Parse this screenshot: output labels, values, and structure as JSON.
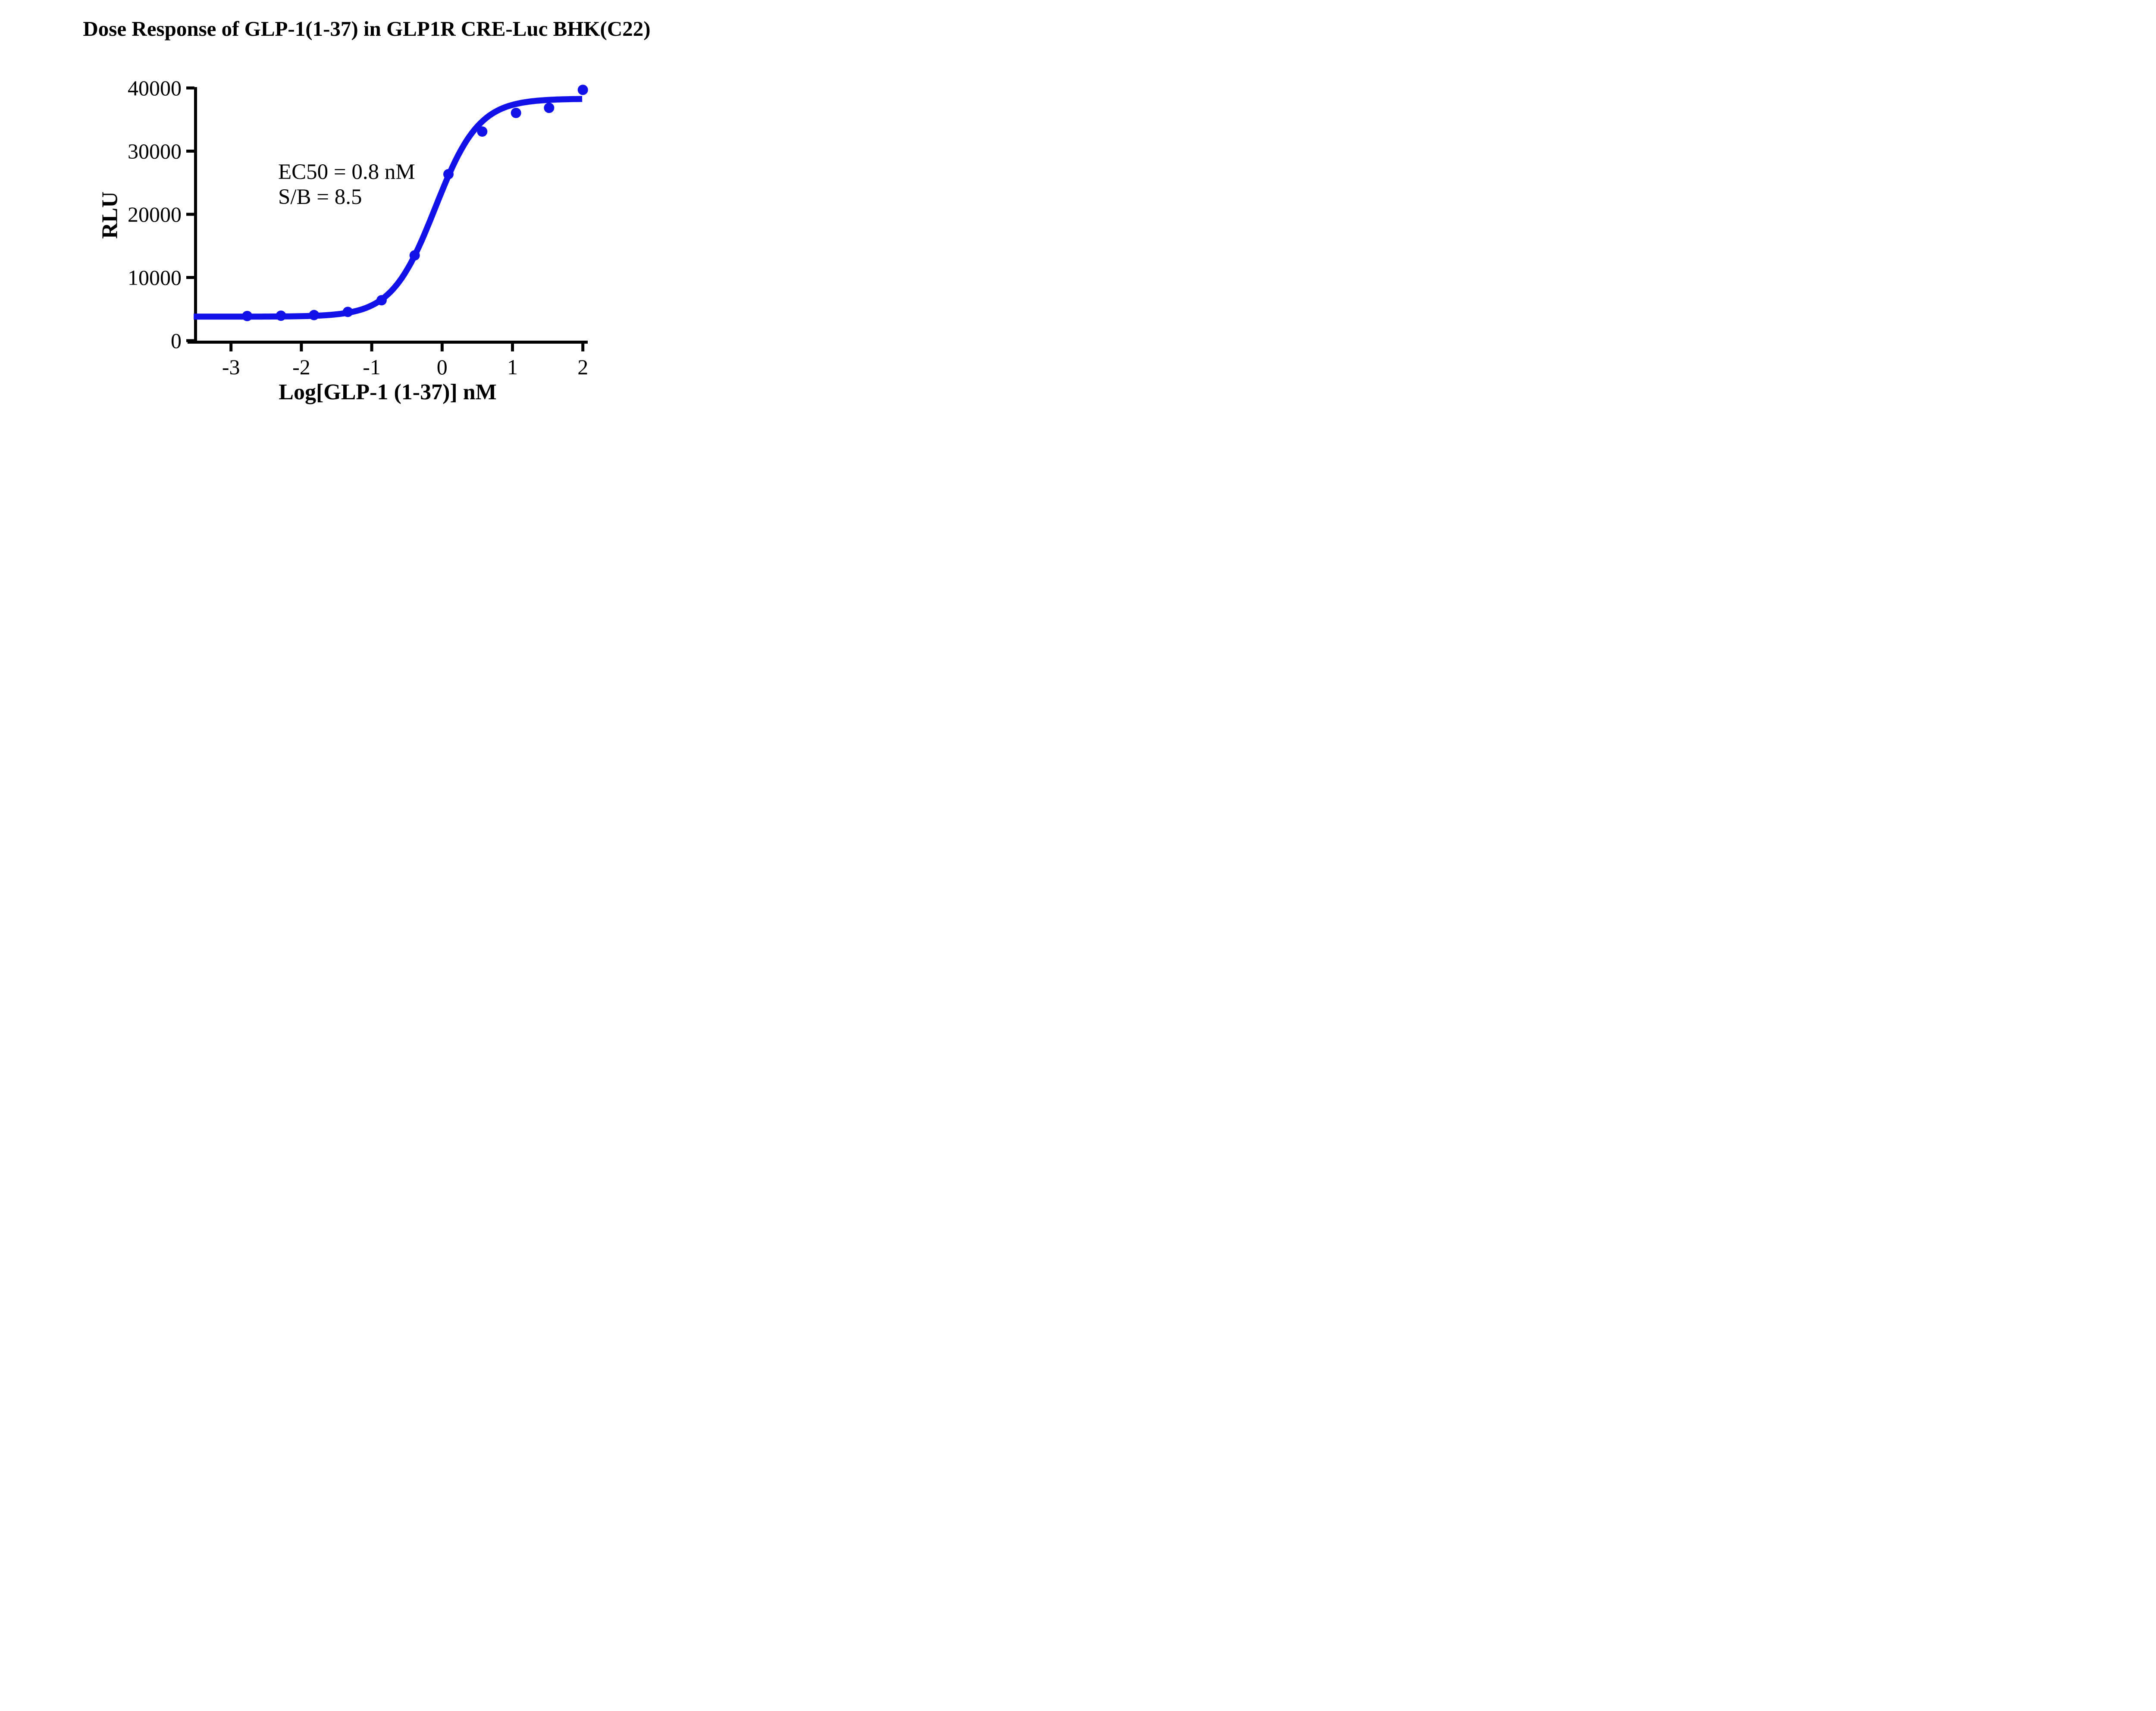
{
  "title": "Dose Response of GLP-1(1-37) in GLP1R CRE-Luc BHK(C22)",
  "colors": {
    "series": "#1212E8",
    "axis": "#000000",
    "background": "#FFFFFF",
    "text": "#000000"
  },
  "chart_data": {
    "type": "scatter",
    "title": "Dose Response of GLP-1(1-37) in GLP1R CRE-Luc BHK(C22)",
    "xlabel": "Log[GLP-1 (1-37)] nM",
    "ylabel": "RLU",
    "x_ticks": [
      -3,
      -2,
      -1,
      0,
      1,
      2
    ],
    "x_tick_labels": [
      "-3",
      "-2",
      "-1",
      "0",
      "1",
      "2"
    ],
    "y_ticks": [
      0,
      10000,
      20000,
      30000,
      40000
    ],
    "y_tick_labels": [
      "0",
      "10000",
      "20000",
      "30000",
      "40000"
    ],
    "xlim": [
      -3.53,
      2.08
    ],
    "ylim": [
      0,
      40000
    ],
    "grid": "off",
    "legend": "none",
    "marker_color": "#1212E8",
    "line_color": "#1212E8",
    "points": {
      "x": [
        -2.77,
        -2.29,
        -1.82,
        -1.34,
        -0.86,
        -0.39,
        0.09,
        0.57,
        1.05,
        1.52,
        2.0
      ],
      "y": [
        3900,
        3950,
        4050,
        4550,
        6400,
        13500,
        26350,
        33100,
        36050,
        36850,
        39700
      ]
    },
    "fit_curve": {
      "model": "4PL-logistic",
      "bottom": 3800,
      "top": 38300,
      "log_ec50": -0.097,
      "hill_slope": 1.4,
      "x_start": -3.53,
      "x_end": 2.0
    },
    "annotations": [
      "EC50 = 0.8 nM",
      "S/B = 8.5"
    ]
  }
}
